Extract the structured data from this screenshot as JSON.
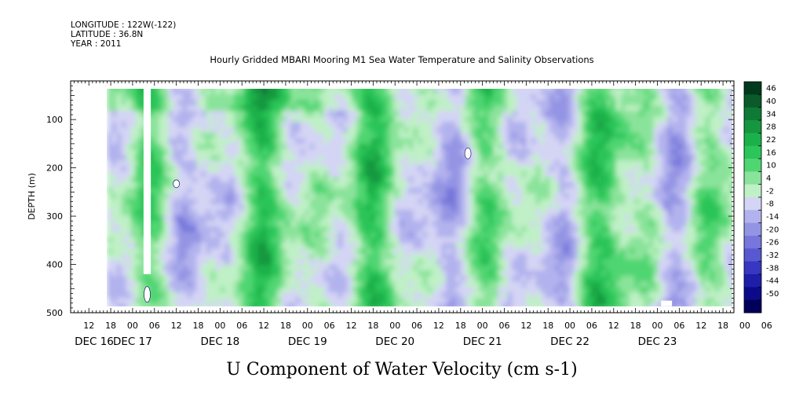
{
  "meta": {
    "longitude": "LONGITUDE : 122W(-122)",
    "latitude": "LATITUDE : 36.8N",
    "year": "YEAR : 2011"
  },
  "chart_data": {
    "type": "heatmap",
    "title": "Hourly Gridded MBARI Mooring M1 Sea Water Temperature and Salinity Observations",
    "bottom_title": "U Component of Water Velocity (cm s-1)",
    "ylabel": "DEPTH (m)",
    "y_axis_reversed": true,
    "ylim": [
      500,
      20
    ],
    "y_ticks": [
      100,
      200,
      300,
      400,
      500
    ],
    "y_tick_labels": [
      "100",
      "200",
      "300",
      "400",
      "500"
    ],
    "x_start": "2011-12-16 07:00",
    "x_end": "2011-12-23 21:00",
    "x_hour_ticks": [
      "12",
      "18",
      "00",
      "06",
      "12",
      "18",
      "00",
      "06",
      "12",
      "18",
      "00",
      "06",
      "12",
      "18",
      "00",
      "06",
      "12",
      "18",
      "00",
      "06",
      "12",
      "18",
      "00",
      "06",
      "12",
      "18",
      "00",
      "06",
      "12",
      "18",
      "00",
      "06"
    ],
    "x_day_labels": [
      {
        "label": "DEC 16",
        "date": "2011-12-16"
      },
      {
        "label": "DEC 17",
        "date": "2011-12-17"
      },
      {
        "label": "DEC 18",
        "date": "2011-12-18"
      },
      {
        "label": "DEC 19",
        "date": "2011-12-19"
      },
      {
        "label": "DEC 20",
        "date": "2011-12-20"
      },
      {
        "label": "DEC 21",
        "date": "2011-12-21"
      },
      {
        "label": "DEC 22",
        "date": "2011-12-22"
      },
      {
        "label": "DEC 23",
        "date": "2011-12-23"
      }
    ],
    "colorbar": {
      "levels": [
        "46",
        "40",
        "34",
        "28",
        "22",
        "16",
        "10",
        "4",
        "-2",
        "-8",
        "-14",
        "-20",
        "-26",
        "-32",
        "-38",
        "-44",
        "-50"
      ],
      "colors": [
        "#003a1a",
        "#0a5a2a",
        "#0f7a35",
        "#14973f",
        "#1bb14a",
        "#2bc559",
        "#4fd672",
        "#8ae39a",
        "#bff0c6",
        "#d4d4f5",
        "#b2b2ee",
        "#9494e4",
        "#7676dc",
        "#5858d2",
        "#3737c2",
        "#1e1eaa",
        "#0b0b8a",
        "#00005a"
      ]
    },
    "data_start": "2011-12-16 17:00",
    "data_gaps": [
      {
        "from": "2011-12-17 03:00",
        "to": "2011-12-17 05:00",
        "depth_from": 20,
        "depth_to": 420
      }
    ],
    "field_description_levels": {
      "positive_band_example_value": 16,
      "negative_band_example_value": -14
    },
    "value_range": [
      -50,
      46
    ]
  }
}
